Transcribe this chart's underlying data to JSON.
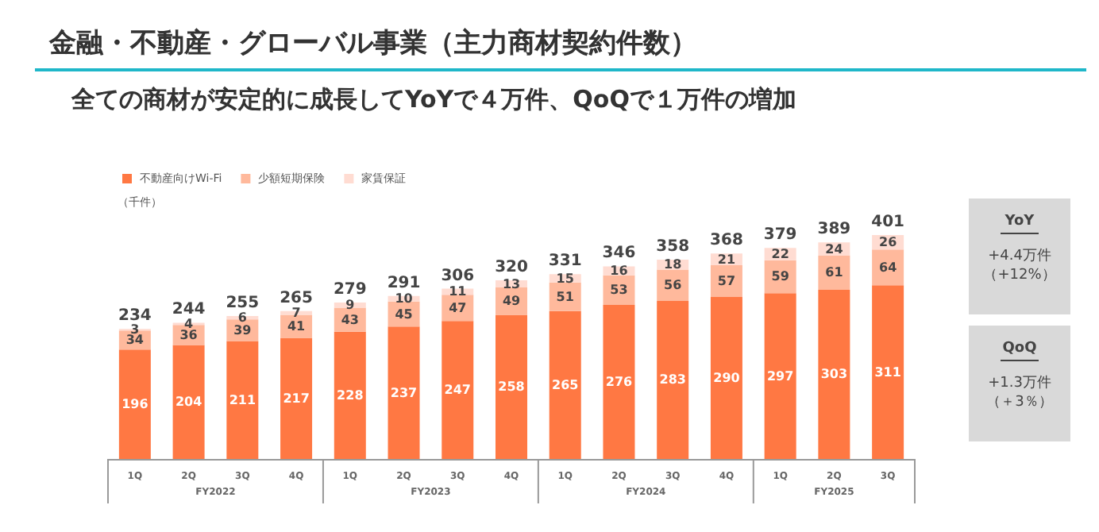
{
  "chart_data": {
    "type": "bar",
    "title": "金融・不動産・グローバル事業（主力商材契約件数）",
    "subtitle": "全ての商材が安定的に成長してYoYで４万件、QoQで１万件の増加",
    "ylabel": "（千件）",
    "stacked": true,
    "data_labels": true,
    "legend": "top left",
    "categories": [
      "1Q",
      "2Q",
      "3Q",
      "4Q",
      "1Q",
      "2Q",
      "3Q",
      "4Q",
      "1Q",
      "2Q",
      "3Q",
      "4Q",
      "1Q",
      "2Q",
      "3Q"
    ],
    "series": [
      {
        "name": "不動産向けWi-Fi",
        "color": "#ff7843",
        "values": [
          196,
          204,
          211,
          217,
          228,
          237,
          247,
          258,
          265,
          276,
          283,
          290,
          297,
          303,
          311
        ]
      },
      {
        "name": "少額短期保険",
        "color": "#ffb99c",
        "values": [
          34,
          36,
          39,
          41,
          43,
          45,
          47,
          49,
          51,
          53,
          56,
          57,
          59,
          61,
          64
        ]
      },
      {
        "name": "家賃保証",
        "color": "#ffdcd2",
        "values": [
          3,
          4,
          6,
          7,
          9,
          10,
          11,
          13,
          15,
          16,
          18,
          21,
          22,
          24,
          26
        ]
      }
    ],
    "totals": [
      "234",
      "244",
      "255",
      "265",
      "279",
      "291",
      "306",
      "320",
      "331",
      "346",
      "358",
      "368",
      "379",
      "389",
      "401"
    ],
    "annotations": [
      "FY2022",
      "FY2023",
      "FY2024",
      "FY2025",
      "YoY",
      "+4.4万件",
      "（+12%）",
      "QoQ",
      "+1.3万件",
      "（＋3％）"
    ]
  }
}
